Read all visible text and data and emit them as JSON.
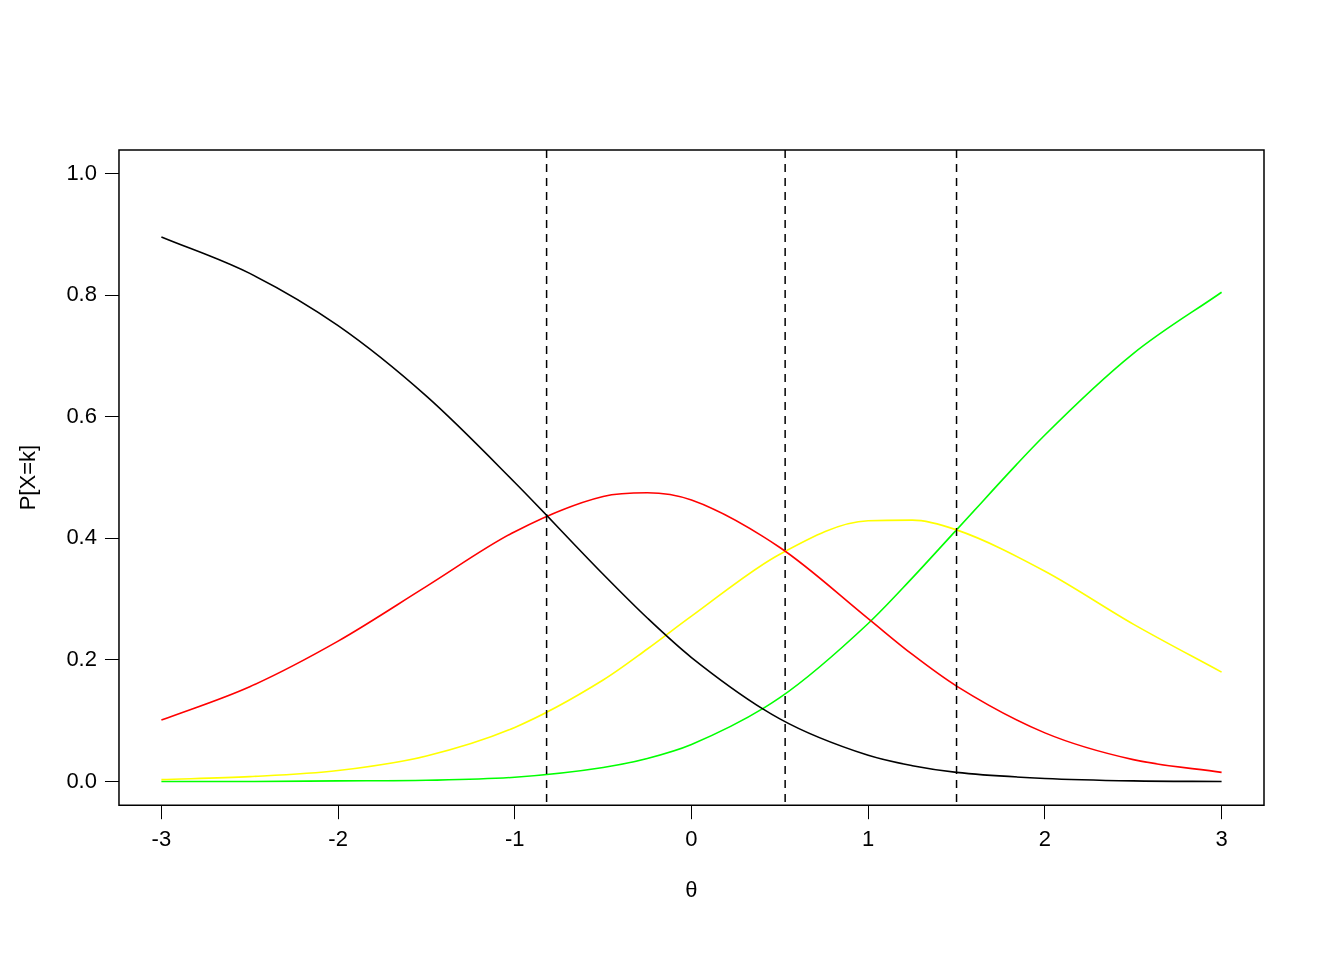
{
  "chart_data": {
    "type": "line",
    "xlabel": "θ",
    "ylabel": "P[X=k]",
    "x": [
      -3,
      -2.5,
      -2,
      -1.5,
      -1,
      -0.5,
      -0.25,
      0,
      0.5,
      1,
      1.25,
      1.5,
      2,
      2.5,
      3
    ],
    "series": [
      {
        "color": "#000000",
        "values": [
          0.896,
          0.836,
          0.75,
          0.634,
          0.492,
          0.341,
          0.269,
          0.204,
          0.103,
          0.043,
          0.026,
          0.015,
          0.005,
          0.001,
          0.0
        ]
      },
      {
        "color": "#ff0000",
        "values": [
          0.101,
          0.156,
          0.231,
          0.321,
          0.411,
          0.469,
          0.475,
          0.463,
          0.385,
          0.268,
          0.209,
          0.157,
          0.08,
          0.036,
          0.015
        ]
      },
      {
        "color": "#ffff00",
        "values": [
          0.003,
          0.008,
          0.018,
          0.042,
          0.089,
          0.167,
          0.218,
          0.272,
          0.374,
          0.429,
          0.43,
          0.414,
          0.346,
          0.259,
          0.18
        ]
      },
      {
        "color": "#00ff00",
        "values": [
          0.0,
          0.0,
          0.001,
          0.002,
          0.007,
          0.023,
          0.038,
          0.061,
          0.138,
          0.26,
          0.335,
          0.414,
          0.57,
          0.704,
          0.805
        ]
      }
    ],
    "xlim": [
      -3.24,
      3.24
    ],
    "ylim": [
      -0.039,
      1.039
    ],
    "xticks": [
      -3,
      -2,
      -1,
      0,
      1,
      2,
      3
    ],
    "yticks": [
      {
        "value": 0,
        "label": "0.0"
      },
      {
        "value": 0.2,
        "label": "0.2"
      },
      {
        "value": 0.4,
        "label": "0.4"
      },
      {
        "value": 0.6,
        "label": "0.6"
      },
      {
        "value": 0.8,
        "label": "0.8"
      },
      {
        "value": 1,
        "label": "1.0"
      }
    ],
    "ref_lines": [
      {
        "axis": "x",
        "value": -0.82,
        "color": "#000000",
        "line_style": "dashed"
      },
      {
        "axis": "x",
        "value": 0.53,
        "color": "#000000",
        "line_style": "dashed"
      },
      {
        "axis": "x",
        "value": 1.5,
        "color": "#000000",
        "line_style": "dashed"
      }
    ],
    "grid": false,
    "legend": false,
    "marker": "none",
    "line_style": "solid"
  }
}
